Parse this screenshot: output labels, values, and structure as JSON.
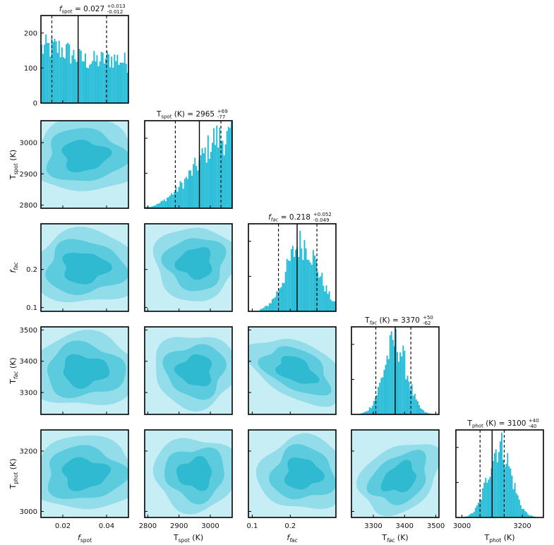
{
  "chart_data": {
    "type": "corner",
    "color": "#1fbad6",
    "contour_colors": [
      "#c8eef5",
      "#92dde9",
      "#5ccbde",
      "#2fbad2"
    ],
    "parameters": [
      {
        "key": "fspot",
        "label": "f",
        "label_sub": "spot",
        "label_italic": true,
        "unit": "",
        "range": [
          0.01,
          0.05
        ],
        "ticks": [
          0.02,
          0.04
        ],
        "tick_labels": [
          "0.02",
          "0.04"
        ],
        "median": 0.027,
        "lo": 0.015,
        "hi": 0.04,
        "title": "= 0.027",
        "err_plus": "+0.013",
        "err_minus": "-0.012",
        "hist_shape": "flat"
      },
      {
        "key": "tspot",
        "label": "T",
        "label_sub": "spot",
        "label_italic": false,
        "unit": "(K)",
        "range": [
          2790,
          3070
        ],
        "ticks": [
          2800,
          2900,
          3000
        ],
        "tick_labels": [
          "2800",
          "2900",
          "3000"
        ],
        "median": 2965,
        "lo": 2888,
        "hi": 3034,
        "title": "= 2965",
        "err_plus": "+69",
        "err_minus": "-77",
        "hist_shape": "rising"
      },
      {
        "key": "ffac",
        "label": "f",
        "label_sub": "fac",
        "label_italic": true,
        "sub_italic": true,
        "unit": "",
        "range": [
          0.09,
          0.32
        ],
        "ticks": [
          0.1,
          0.2
        ],
        "tick_labels": [
          "0.1",
          "0.2"
        ],
        "median": 0.218,
        "lo": 0.169,
        "hi": 0.27,
        "title": "= 0.218",
        "err_plus": "+0.052",
        "err_minus": "-0.049",
        "hist_shape": "skew"
      },
      {
        "key": "tfac",
        "label": "T",
        "label_sub": "fac",
        "label_italic": false,
        "sub_italic": true,
        "unit": "(K)",
        "range": [
          3230,
          3510
        ],
        "ticks": [
          3300,
          3400,
          3500
        ],
        "tick_labels": [
          "3300",
          "3400",
          "3500"
        ],
        "median": 3370,
        "lo": 3308,
        "hi": 3420,
        "title": "= 3370",
        "err_plus": "+50",
        "err_minus": "-62",
        "hist_shape": "gauss"
      },
      {
        "key": "tphot",
        "label": "T",
        "label_sub": "phot",
        "label_italic": false,
        "unit": "(K)",
        "range": [
          2980,
          3270
        ],
        "ticks": [
          3000,
          3200
        ],
        "tick_labels": [
          "3000",
          "3200"
        ],
        "median": 3100,
        "lo": 3060,
        "hi": 3140,
        "title": "= 3100",
        "err_plus": "+40",
        "err_minus": "-40",
        "hist_shape": "gauss"
      }
    ],
    "diag_ylim": [
      0,
      250
    ],
    "diag_yticks": [
      0,
      100,
      200
    ],
    "diag_ytick_labels": [
      "0",
      "100",
      "200"
    ]
  }
}
